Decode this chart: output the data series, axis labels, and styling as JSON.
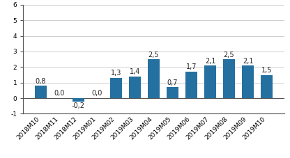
{
  "categories": [
    "2018M10",
    "2018M11",
    "2018M12",
    "2019M01",
    "2019M02",
    "2019M03",
    "2019M04",
    "2019M05",
    "2019M06",
    "2019M07",
    "2019M08",
    "2019M09",
    "2019M10"
  ],
  "values": [
    0.8,
    0.0,
    -0.2,
    0.0,
    1.3,
    1.4,
    2.5,
    0.7,
    1.7,
    2.1,
    2.5,
    2.1,
    1.5
  ],
  "bar_color": "#2470a0",
  "label_color": "#222222",
  "background_color": "#ffffff",
  "ylim": [
    -1,
    6
  ],
  "yticks": [
    -1,
    0,
    1,
    2,
    3,
    4,
    5,
    6
  ],
  "grid_color": "#d0d0d0",
  "tick_fontsize": 6.5,
  "value_label_fontsize": 7.0,
  "bar_width": 0.6
}
